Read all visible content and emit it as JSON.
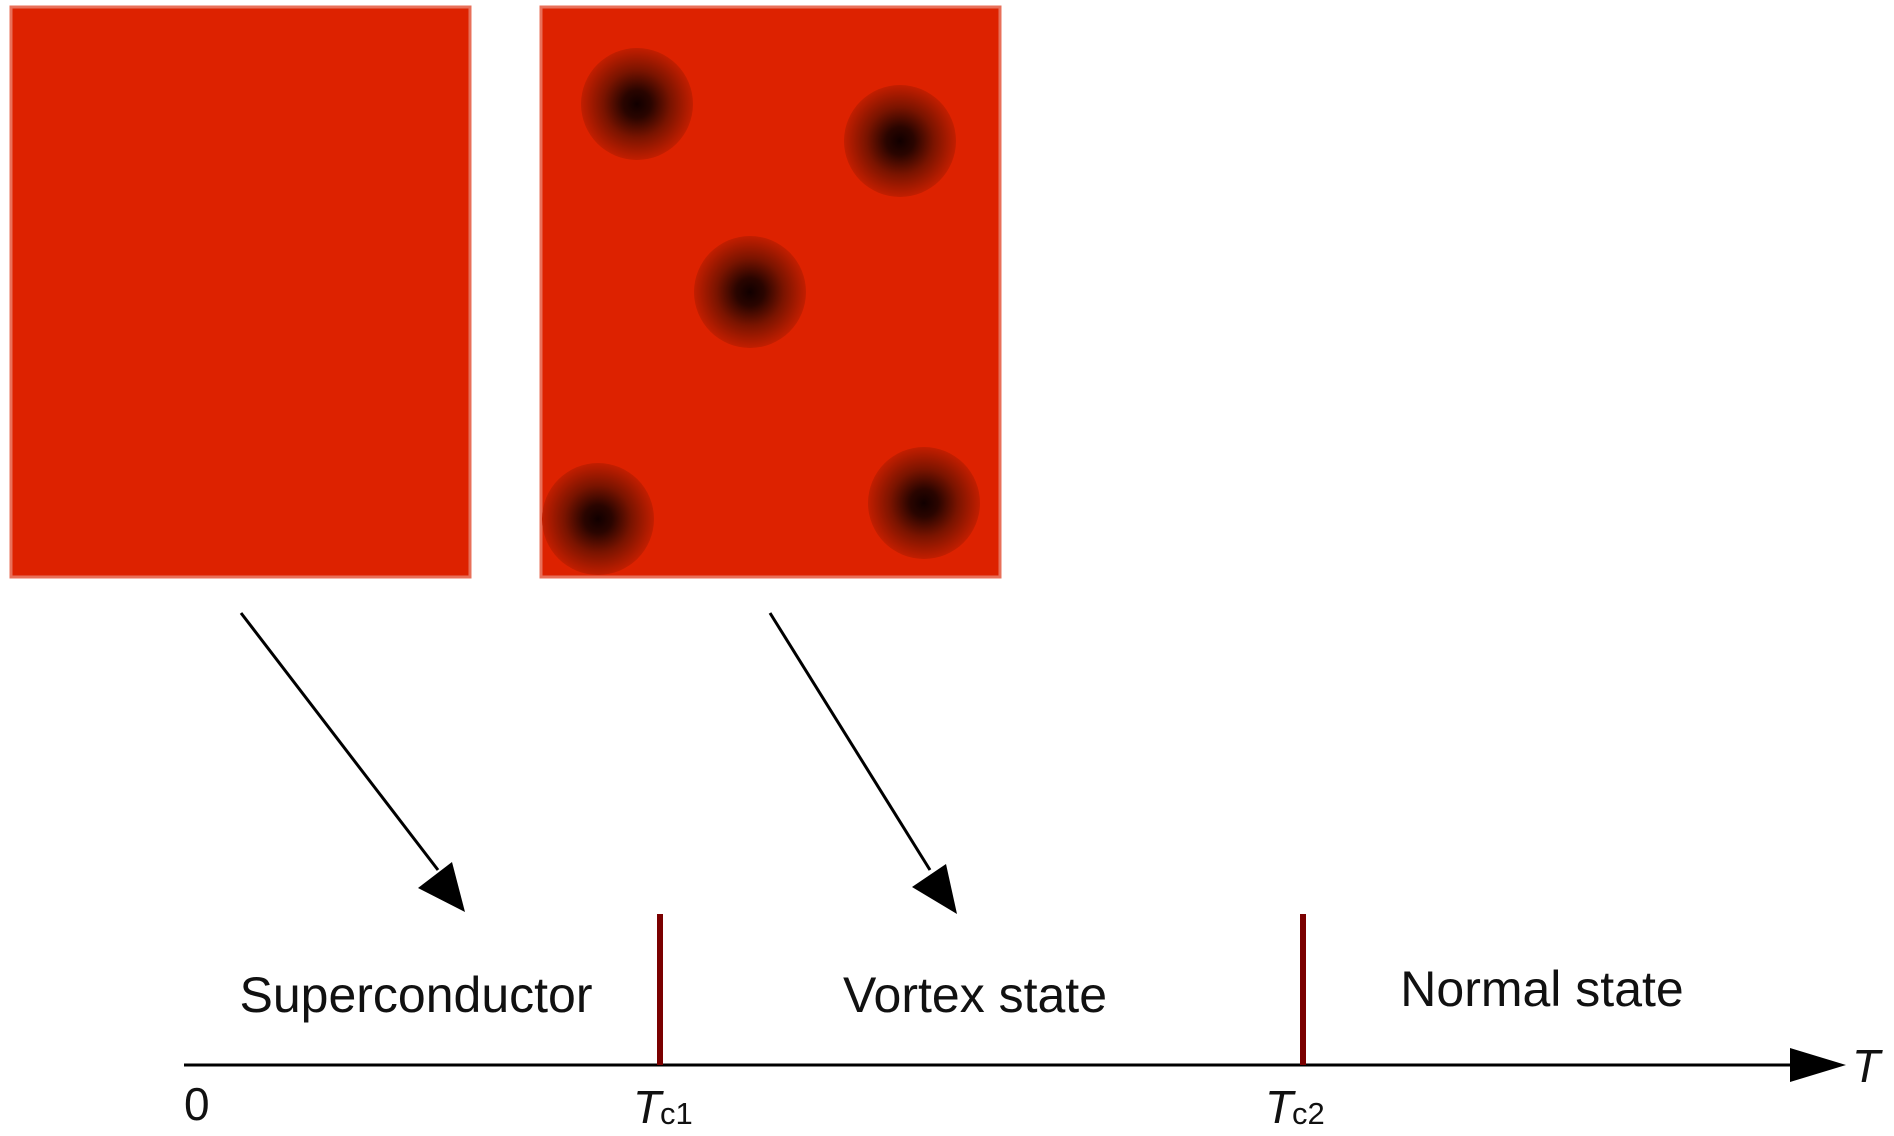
{
  "colors": {
    "panel_fill": "#dd2200",
    "panel_border": "#e8705a",
    "vortex_core": "#1a0000",
    "marker": "#7a0000",
    "line": "#000000"
  },
  "panels": [
    {
      "name": "superconductor-panel",
      "vortex_count": 0
    },
    {
      "name": "vortex-state-panel",
      "vortex_count": 5
    }
  ],
  "regions": {
    "superconductor": "Superconductor",
    "vortex_state": "Vortex state",
    "normal_state": "Normal state"
  },
  "axis": {
    "variable": "T",
    "origin_label": "0",
    "tc1": {
      "main": "T",
      "sub": "c1"
    },
    "tc2": {
      "main": "T",
      "sub": "c2"
    }
  }
}
